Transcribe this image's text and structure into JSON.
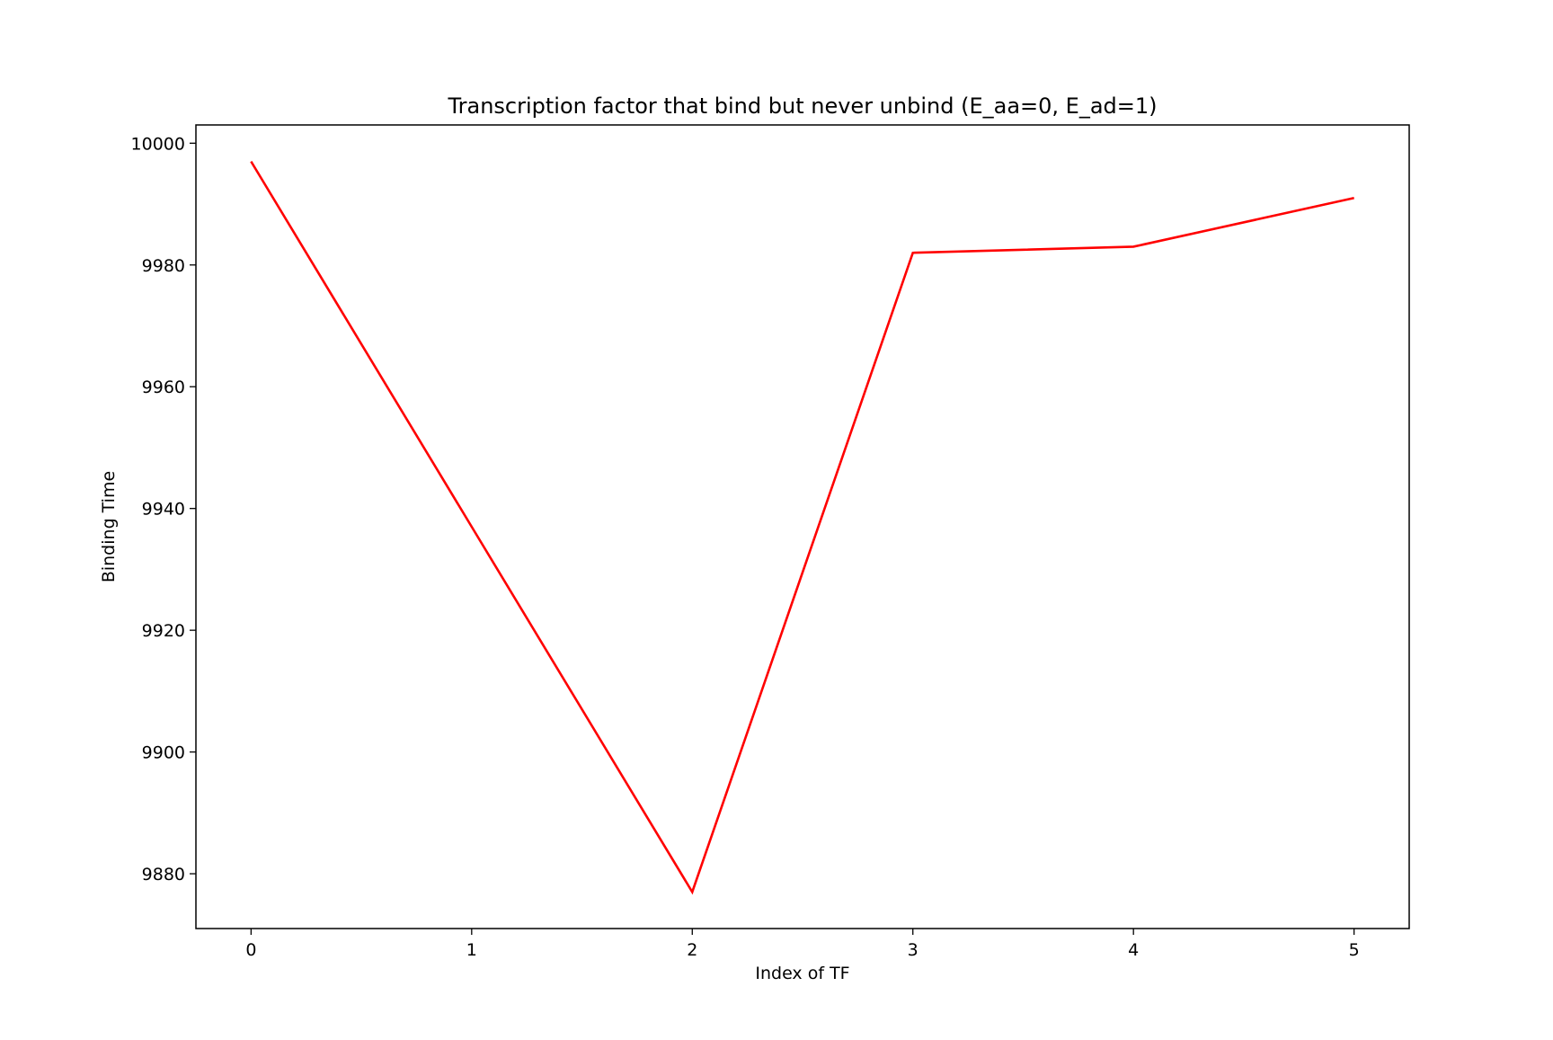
{
  "chart_data": {
    "type": "line",
    "title": "Transcription factor that bind but never unbind (E_aa=0, E_ad=1)",
    "xlabel": "Index of TF",
    "ylabel": "Binding Time",
    "x": [
      0,
      1,
      2,
      3,
      4,
      5
    ],
    "series": [
      {
        "values": [
          9997,
          9937,
          9877,
          9982,
          9983,
          9991
        ],
        "color": "#ff0000"
      }
    ],
    "xticks": [
      "0",
      "1",
      "2",
      "3",
      "4",
      "5"
    ],
    "yticks": [
      "9880",
      "9900",
      "9920",
      "9940",
      "9960",
      "9980",
      "10000"
    ],
    "xlim": [
      -0.25,
      5.25
    ],
    "ylim": [
      9871,
      10003
    ],
    "grid": false,
    "legend": "none"
  }
}
